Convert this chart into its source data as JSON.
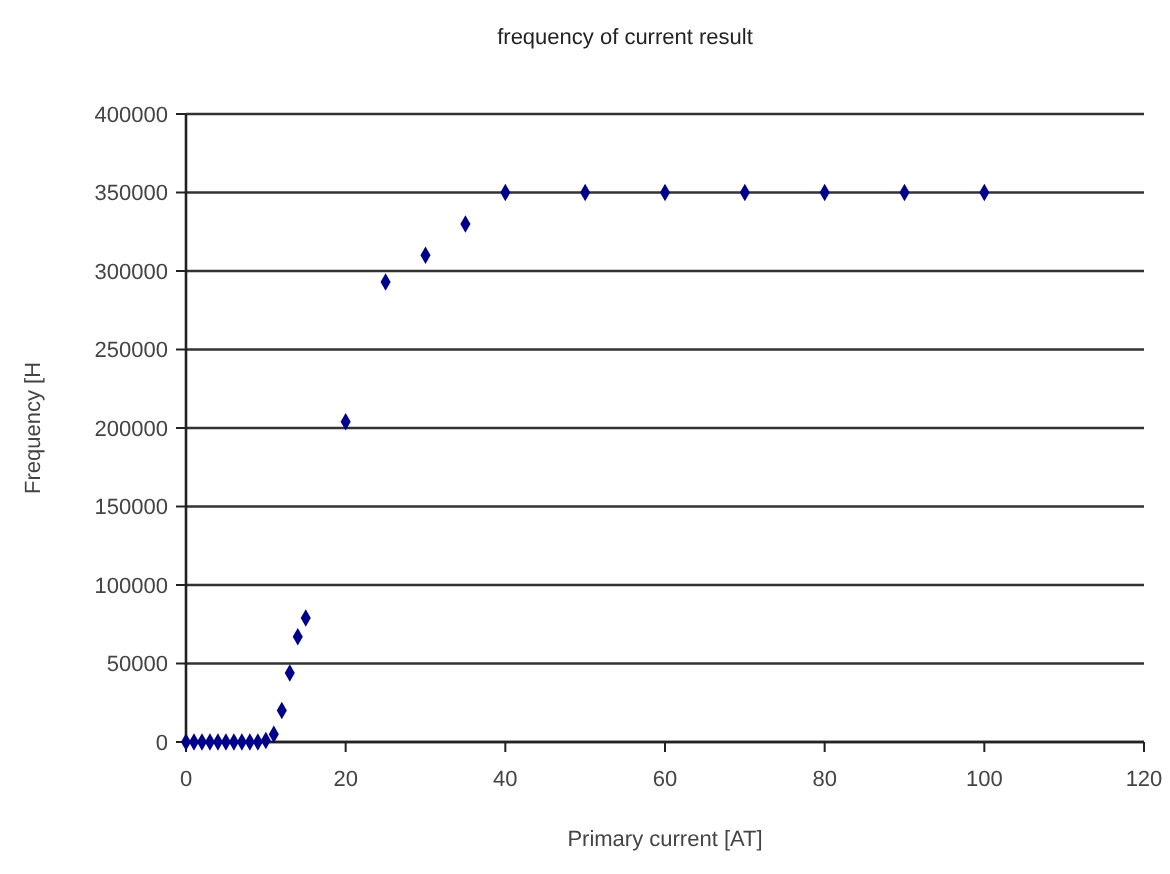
{
  "chart_data": {
    "type": "scatter",
    "title": "frequency of current result",
    "xlabel": "Primary current [AT]",
    "ylabel": "Frequency [H",
    "x": [
      0,
      1,
      2,
      3,
      4,
      5,
      6,
      7,
      8,
      9,
      10,
      11,
      12,
      13,
      14,
      15,
      20,
      25,
      30,
      35,
      40,
      50,
      60,
      70,
      80,
      90,
      100
    ],
    "series": [
      {
        "color": "#00008b",
        "values": [
          0,
          0,
          0,
          0,
          0,
          0,
          0,
          0,
          0,
          0,
          1000,
          5000,
          20000,
          44000,
          67000,
          79000,
          204000,
          293000,
          310000,
          330000,
          350000,
          350000,
          350000,
          350000,
          350000,
          350000,
          350000
        ]
      }
    ],
    "xlim": [
      0,
      120
    ],
    "xticks": [
      0,
      20,
      40,
      60,
      80,
      100,
      120
    ],
    "ylim": [
      0,
      400000
    ],
    "yticks": [
      0,
      50000,
      100000,
      150000,
      200000,
      250000,
      300000,
      350000,
      400000
    ],
    "grid": "y",
    "marker": "diamond"
  }
}
